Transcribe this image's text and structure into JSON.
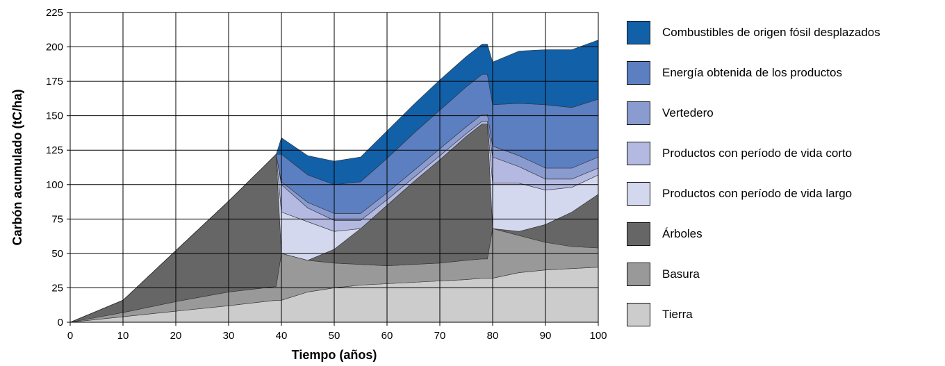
{
  "chart_data": {
    "type": "area",
    "stacked": true,
    "xlabel": "Tiempo (años)",
    "ylabel": "Carbón acumulado (tC/ha)",
    "xlim": [
      0,
      100
    ],
    "ylim": [
      0,
      225
    ],
    "xticks": [
      "0",
      "10",
      "20",
      "30",
      "40",
      "50",
      "60",
      "70",
      "80",
      "90",
      "100"
    ],
    "yticks": [
      "0",
      "25",
      "50",
      "75",
      "100",
      "125",
      "150",
      "175",
      "200",
      "225"
    ],
    "grid": true,
    "legend_position": "right",
    "x": [
      0,
      10,
      20,
      30,
      39,
      40,
      45,
      50,
      55,
      60,
      65,
      70,
      75,
      78,
      79,
      80,
      85,
      90,
      95,
      100
    ],
    "series": [
      {
        "name": "Tierra",
        "color": "#cccccc",
        "values": [
          0,
          4,
          8,
          12,
          16,
          16,
          22,
          25,
          27,
          28,
          29,
          30,
          31,
          32,
          32,
          32,
          36,
          38,
          39,
          40
        ]
      },
      {
        "name": "Basura",
        "color": "#999999",
        "values": [
          0,
          3,
          7,
          10,
          10,
          34,
          23,
          18,
          15,
          13,
          13,
          13,
          14,
          14,
          14,
          36,
          27,
          20,
          16,
          14
        ]
      },
      {
        "name": "Árboles",
        "color": "#666666",
        "values": [
          0,
          9,
          37,
          66,
          96,
          0,
          0,
          10,
          26,
          44,
          60,
          75,
          90,
          98,
          98,
          0,
          3,
          13,
          25,
          39
        ]
      },
      {
        "name": "Productos con período de vida largo",
        "color": "#d4d8ef",
        "values": [
          0,
          0,
          0,
          0,
          0,
          30,
          28,
          13,
          0,
          0,
          0,
          0,
          0,
          0,
          0,
          33,
          35,
          25,
          18,
          14
        ]
      },
      {
        "name": "Productos con período de vida corto",
        "color": "#b3b9e0",
        "values": [
          0,
          0,
          0,
          0,
          0,
          20,
          10,
          8,
          6,
          4,
          3,
          3,
          2,
          2,
          2,
          19,
          12,
          8,
          6,
          5
        ]
      },
      {
        "name": "Vertedero",
        "color": "#8a9bd0",
        "values": [
          0,
          0,
          0,
          0,
          0,
          2,
          4,
          5,
          5,
          5,
          5,
          5,
          5,
          5,
          5,
          8,
          8,
          8,
          8,
          8
        ]
      },
      {
        "name": "Energía obtenida de los productos",
        "color": "#5b7fc1",
        "values": [
          0,
          0,
          0,
          0,
          0,
          20,
          20,
          21,
          23,
          25,
          27,
          28,
          29,
          29,
          29,
          30,
          38,
          46,
          44,
          42
        ]
      },
      {
        "name": "Combustibles de origen fósil desplazados",
        "color": "#1260a8",
        "values": [
          0,
          0,
          0,
          0,
          0,
          12,
          14,
          17,
          18,
          20,
          21,
          22,
          22,
          22,
          22,
          31,
          38,
          40,
          42,
          43
        ]
      }
    ]
  },
  "legend": [
    {
      "label": "Combustibles de origen fósil desplazados",
      "color": "#1260a8"
    },
    {
      "label": "Energía obtenida de los productos",
      "color": "#5b7fc1"
    },
    {
      "label": "Vertedero",
      "color": "#8a9bd0"
    },
    {
      "label": "Productos con período de vida corto",
      "color": "#b3b9e0"
    },
    {
      "label": "Productos con período de vida largo",
      "color": "#d4d8ef"
    },
    {
      "label": "Árboles",
      "color": "#666666"
    },
    {
      "label": "Basura",
      "color": "#999999"
    },
    {
      "label": "Tierra",
      "color": "#cccccc"
    }
  ]
}
